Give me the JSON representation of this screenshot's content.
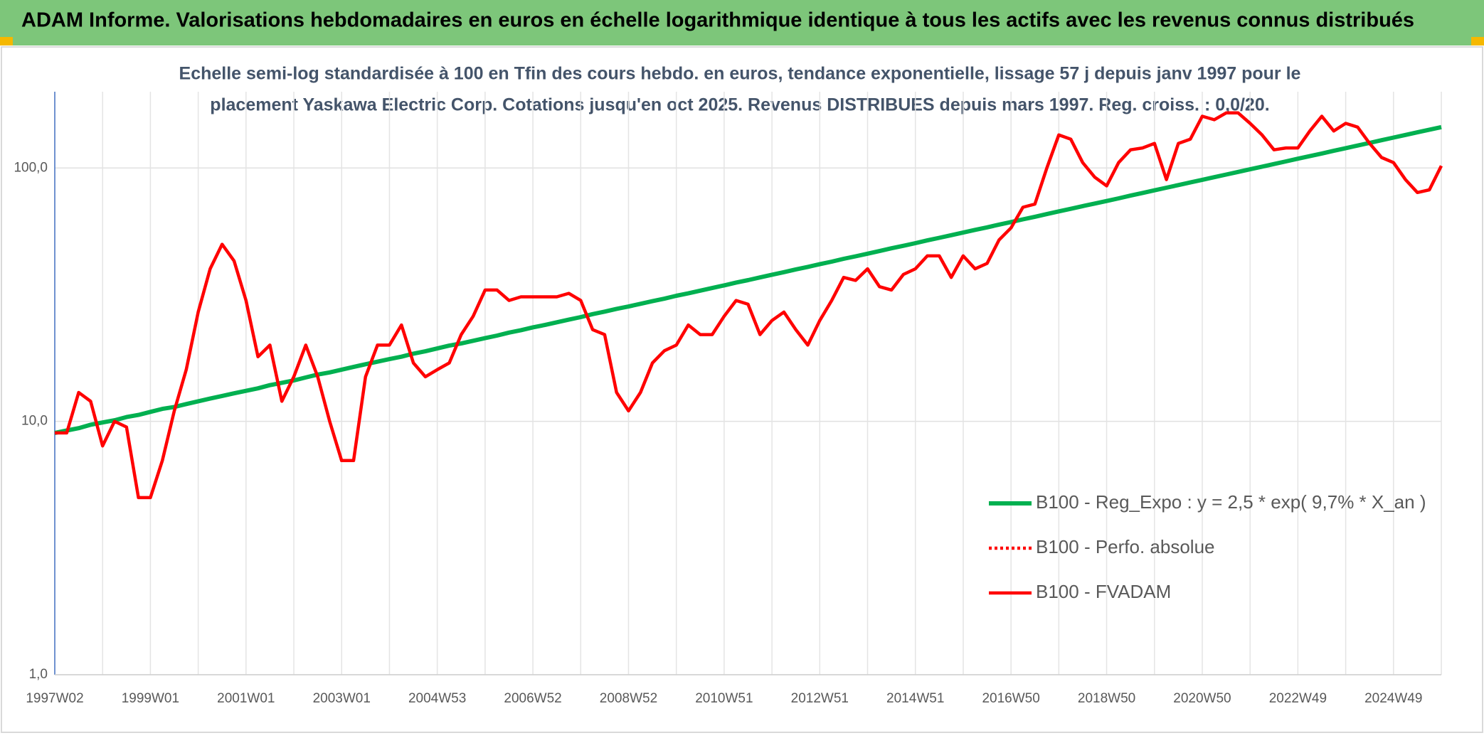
{
  "header": {
    "title": "ADAM Informe. Valorisations hebdomadaires en euros en échelle logarithmique identique à tous les actifs avec les revenus connus distribués"
  },
  "chart_data": {
    "type": "line",
    "subtitle": [
      "Echelle semi-log standardisée à 100 en Tfin des cours hebdo. en euros, tendance exponentielle, lissage 57 j depuis janv 1997 pour le",
      "placement Yaskawa Electric Corp. Cotations jusqu'en oct 2025. Revenus DISTRIBUES depuis mars 1997. Reg. croiss. : 0,0/20."
    ],
    "log_scale": true,
    "grid": true,
    "legend": "bottom-right",
    "ylim": [
      1,
      200
    ],
    "yticks": [
      {
        "value": 1,
        "label": "1,0"
      },
      {
        "value": 10,
        "label": "10,0"
      },
      {
        "value": 100,
        "label": "100,0"
      }
    ],
    "categories": [
      "1997W02",
      null,
      null,
      null,
      null,
      null,
      null,
      null,
      "1999W01",
      null,
      null,
      null,
      null,
      null,
      null,
      null,
      "2001W01",
      null,
      null,
      null,
      null,
      null,
      null,
      null,
      "2003W01",
      null,
      null,
      null,
      null,
      null,
      null,
      null,
      "2004W53",
      null,
      null,
      null,
      null,
      null,
      null,
      null,
      "2006W52",
      null,
      null,
      null,
      null,
      null,
      null,
      null,
      "2008W52",
      null,
      null,
      null,
      null,
      null,
      null,
      null,
      "2010W51",
      null,
      null,
      null,
      null,
      null,
      null,
      null,
      "2012W51",
      null,
      null,
      null,
      null,
      null,
      null,
      null,
      "2014W51",
      null,
      null,
      null,
      null,
      null,
      null,
      null,
      "2016W50",
      null,
      null,
      null,
      null,
      null,
      null,
      null,
      "2018W50",
      null,
      null,
      null,
      null,
      null,
      null,
      null,
      "2020W50",
      null,
      null,
      null,
      null,
      null,
      null,
      null,
      "2022W49",
      null,
      null,
      null,
      null,
      null,
      null,
      null,
      "2024W49",
      null,
      null,
      null,
      null
    ],
    "series": [
      {
        "name": "B100 - Reg_Expo : y = 2,5 * exp( 9,7% *  X_an )",
        "color": "#00b050",
        "style": "solid",
        "values": [
          9.0,
          9.2,
          9.4,
          9.7,
          9.9,
          10.1,
          10.4,
          10.6,
          10.9,
          11.2,
          11.4,
          11.7,
          12.0,
          12.3,
          12.6,
          12.9,
          13.2,
          13.5,
          13.9,
          14.2,
          14.5,
          14.9,
          15.3,
          15.6,
          16.0,
          16.4,
          16.8,
          17.2,
          17.6,
          18.0,
          18.5,
          18.9,
          19.4,
          19.9,
          20.3,
          20.8,
          21.3,
          21.8,
          22.4,
          22.9,
          23.5,
          24.0,
          24.6,
          25.2,
          25.8,
          26.5,
          27.1,
          27.8,
          28.4,
          29.1,
          29.8,
          30.5,
          31.3,
          32.0,
          32.8,
          33.6,
          34.4,
          35.3,
          36.1,
          37.0,
          37.9,
          38.8,
          39.8,
          40.7,
          41.7,
          42.7,
          43.8,
          44.8,
          45.9,
          47.0,
          48.2,
          49.3,
          50.5,
          51.8,
          53.0,
          54.3,
          55.6,
          57.0,
          58.3,
          59.8,
          61.2,
          62.7,
          64.2,
          65.8,
          67.4,
          69.0,
          70.7,
          72.4,
          74.1,
          75.9,
          77.8,
          79.7,
          81.6,
          83.6,
          85.6,
          87.7,
          89.8,
          92.0,
          94.2,
          96.5,
          98.8,
          101.2,
          103.7,
          106.2,
          108.8,
          111.4,
          114.1,
          116.9,
          119.7,
          122.6,
          125.6,
          128.7,
          131.8,
          135.0,
          138.3,
          141.6,
          145.0
        ]
      },
      {
        "name": "B100 - Perfo. absolue",
        "color": "#ff0000",
        "style": "dotted"
      },
      {
        "name": "B100 - FVADAM",
        "color": "#ff0000",
        "style": "solid",
        "values": [
          9,
          9,
          13,
          12,
          8,
          10,
          9.5,
          5,
          5,
          7,
          11,
          16,
          27,
          40,
          50,
          43,
          30,
          18,
          20,
          12,
          15,
          20,
          15,
          10,
          7,
          7,
          15,
          20,
          20,
          24,
          17,
          15,
          16,
          17,
          22,
          26,
          33,
          33,
          30,
          31,
          31,
          31,
          31,
          32,
          30,
          23,
          22,
          13,
          11,
          13,
          17,
          19,
          20,
          24,
          22,
          22,
          26,
          30,
          29,
          22,
          25,
          27,
          23,
          20,
          25,
          30,
          37,
          36,
          40,
          34,
          33,
          38,
          40,
          45,
          45,
          37,
          45,
          40,
          42,
          52,
          58,
          70,
          72,
          100,
          135,
          130,
          105,
          92,
          85,
          105,
          118,
          120,
          125,
          90,
          125,
          130,
          160,
          155,
          165,
          165,
          150,
          135,
          118,
          120,
          120,
          140,
          160,
          140,
          150,
          145,
          125,
          110,
          105,
          90,
          80,
          82,
          102
        ]
      }
    ]
  }
}
